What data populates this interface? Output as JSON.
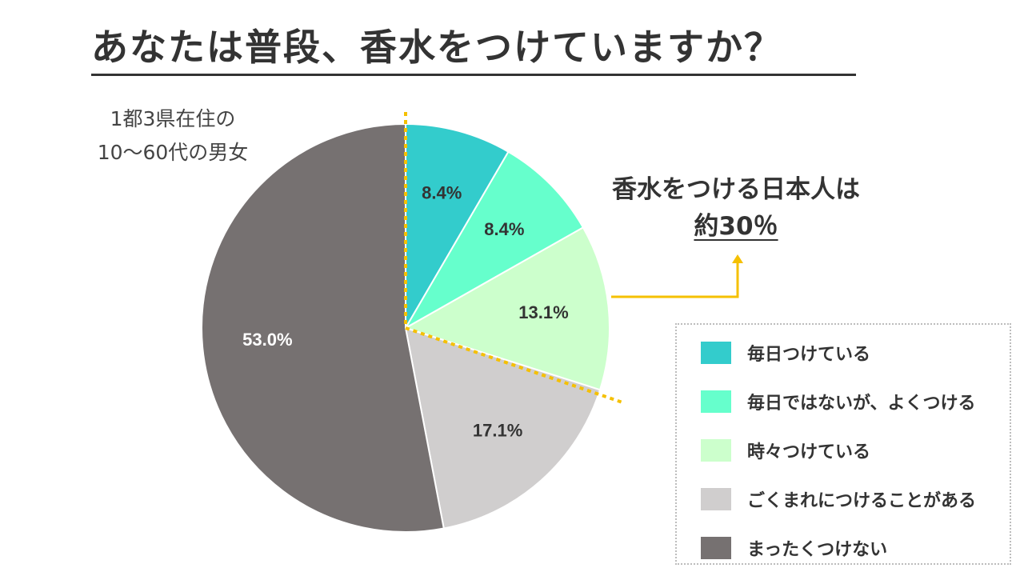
{
  "header": {
    "title": "あなたは普段、香水をつけていますか？",
    "subtitle_line1": "1都3県在住の",
    "subtitle_line2": "10〜60代の男女"
  },
  "callout": {
    "line1": "香水をつける日本人は",
    "line2": "約30％"
  },
  "colors": {
    "accent": "#f5c000"
  },
  "chart_data": {
    "type": "pie",
    "title": "あなたは普段、香水をつけていますか？",
    "slices": [
      {
        "label": "毎日つけている",
        "value": 8.4,
        "display": "8.4%",
        "color": "#33cccc",
        "label_color": "#333333"
      },
      {
        "label": "毎日ではないが、よくつける",
        "value": 8.4,
        "display": "8.4%",
        "color": "#66ffcc",
        "label_color": "#333333"
      },
      {
        "label": "時々つけている",
        "value": 13.1,
        "display": "13.1%",
        "color": "#ccffcc",
        "label_color": "#333333"
      },
      {
        "label": "ごくまれにつけることがある",
        "value": 17.1,
        "display": "17.1%",
        "color": "#d0cece",
        "label_color": "#333333"
      },
      {
        "label": "まったくつけない",
        "value": 53.0,
        "display": "53.0%",
        "color": "#767171",
        "label_color": "#ffffff"
      }
    ],
    "legend_position": "right-bottom"
  }
}
